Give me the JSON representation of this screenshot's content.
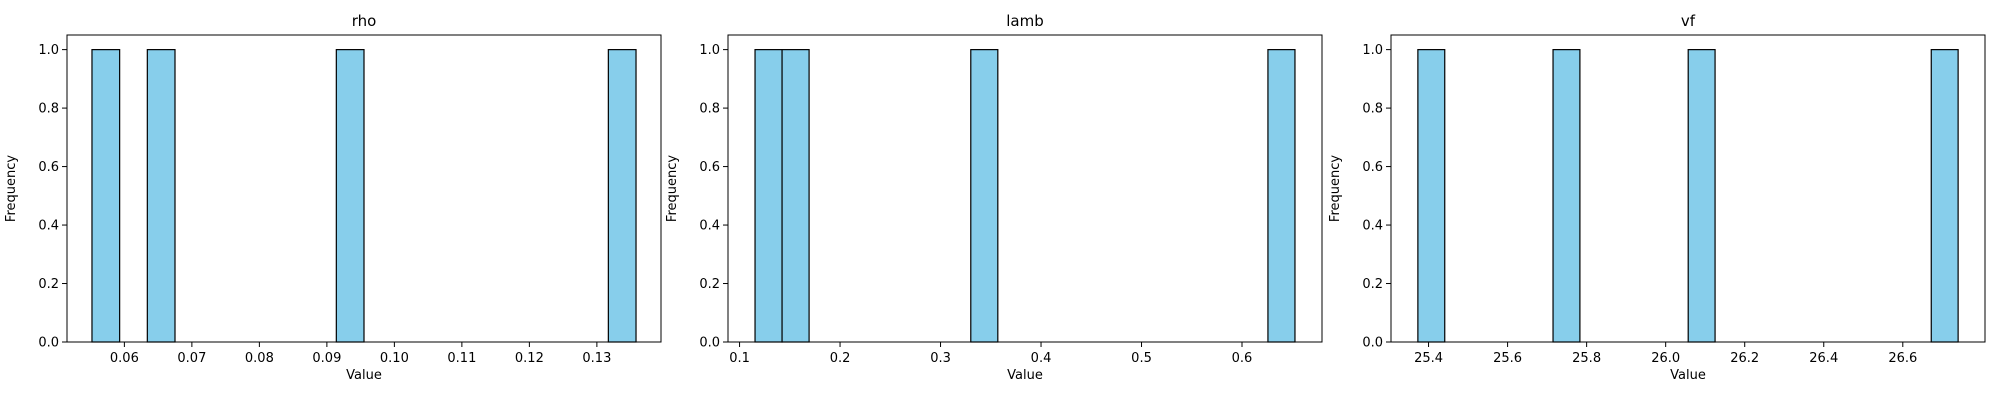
{
  "colors": {
    "bar_fill": "#87CEEB",
    "bar_edge": "#000000",
    "axis": "#000000",
    "background": "#ffffff"
  },
  "chart_data": [
    {
      "type": "bar",
      "title": "rho",
      "xlabel": "Value",
      "ylabel": "Frequency",
      "xlim": [
        0.0515,
        0.1395
      ],
      "ylim": [
        0,
        1.05
      ],
      "bin_width": 0.0041,
      "bars": [
        {
          "x0": 0.0552,
          "x1": 0.0593,
          "count": 1
        },
        {
          "x0": 0.0634,
          "x1": 0.0675,
          "count": 1
        },
        {
          "x0": 0.0914,
          "x1": 0.0955,
          "count": 1
        },
        {
          "x0": 0.1317,
          "x1": 0.1358,
          "count": 1
        }
      ],
      "xticks": [
        {
          "value": 0.06,
          "label": "0.06"
        },
        {
          "value": 0.07,
          "label": "0.07"
        },
        {
          "value": 0.08,
          "label": "0.08"
        },
        {
          "value": 0.09,
          "label": "0.09"
        },
        {
          "value": 0.1,
          "label": "0.10"
        },
        {
          "value": 0.11,
          "label": "0.11"
        },
        {
          "value": 0.12,
          "label": "0.12"
        },
        {
          "value": 0.13,
          "label": "0.13"
        }
      ],
      "yticks": [
        {
          "value": 0.0,
          "label": "0.0"
        },
        {
          "value": 0.2,
          "label": "0.2"
        },
        {
          "value": 0.4,
          "label": "0.4"
        },
        {
          "value": 0.6,
          "label": "0.6"
        },
        {
          "value": 0.8,
          "label": "0.8"
        },
        {
          "value": 1.0,
          "label": "1.0"
        }
      ]
    },
    {
      "type": "bar",
      "title": "lamb",
      "xlabel": "Value",
      "ylabel": "Frequency",
      "xlim": [
        0.0885,
        0.6796
      ],
      "ylim": [
        0,
        1.05
      ],
      "bin_width": 0.0269,
      "bars": [
        {
          "x0": 0.1154,
          "x1": 0.1423,
          "count": 1
        },
        {
          "x0": 0.1423,
          "x1": 0.1692,
          "count": 1
        },
        {
          "x0": 0.3301,
          "x1": 0.357,
          "count": 1
        },
        {
          "x0": 0.6258,
          "x1": 0.6527,
          "count": 1
        }
      ],
      "xticks": [
        {
          "value": 0.1,
          "label": "0.1"
        },
        {
          "value": 0.2,
          "label": "0.2"
        },
        {
          "value": 0.3,
          "label": "0.3"
        },
        {
          "value": 0.4,
          "label": "0.4"
        },
        {
          "value": 0.5,
          "label": "0.5"
        },
        {
          "value": 0.6,
          "label": "0.6"
        }
      ],
      "yticks": [
        {
          "value": 0.0,
          "label": "0.0"
        },
        {
          "value": 0.2,
          "label": "0.2"
        },
        {
          "value": 0.4,
          "label": "0.4"
        },
        {
          "value": 0.6,
          "label": "0.6"
        },
        {
          "value": 0.8,
          "label": "0.8"
        },
        {
          "value": 1.0,
          "label": "1.0"
        }
      ]
    },
    {
      "type": "bar",
      "title": "vf",
      "xlabel": "Value",
      "ylabel": "Frequency",
      "xlim": [
        25.305,
        26.808
      ],
      "ylim": [
        0,
        1.05
      ],
      "bin_width": 0.0683,
      "bars": [
        {
          "x0": 25.373,
          "x1": 25.441,
          "count": 1
        },
        {
          "x0": 25.715,
          "x1": 25.783,
          "count": 1
        },
        {
          "x0": 26.057,
          "x1": 26.125,
          "count": 1
        },
        {
          "x0": 26.672,
          "x1": 26.74,
          "count": 1
        }
      ],
      "xticks": [
        {
          "value": 25.4,
          "label": "25.4"
        },
        {
          "value": 25.6,
          "label": "25.6"
        },
        {
          "value": 25.8,
          "label": "25.8"
        },
        {
          "value": 26.0,
          "label": "26.0"
        },
        {
          "value": 26.2,
          "label": "26.2"
        },
        {
          "value": 26.4,
          "label": "26.4"
        },
        {
          "value": 26.6,
          "label": "26.6"
        }
      ],
      "yticks": [
        {
          "value": 0.0,
          "label": "0.0"
        },
        {
          "value": 0.2,
          "label": "0.2"
        },
        {
          "value": 0.4,
          "label": "0.4"
        },
        {
          "value": 0.6,
          "label": "0.6"
        },
        {
          "value": 0.8,
          "label": "0.8"
        },
        {
          "value": 1.0,
          "label": "1.0"
        }
      ]
    }
  ]
}
